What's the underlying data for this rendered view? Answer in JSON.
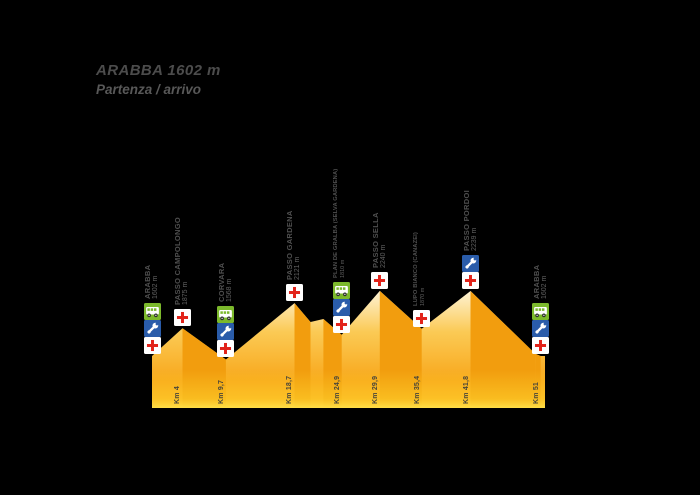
{
  "title": {
    "line1": "ARABBA 1602 m",
    "line2": "Partenza / arrivo"
  },
  "colors": {
    "background": "#000000",
    "face_light_top": "#FEF8E6",
    "face_light_mid": "#FBCA55",
    "face_light_bottom": "#F8A71B",
    "face_dark": "#F29D0E",
    "glow_yellow": "#FFD62E",
    "label_text": "#4F4F4F",
    "km_text": "#4A463A",
    "first_aid_red": "#E2231A",
    "service_blue": "#2A5CAA",
    "bus_green": "#7CB92C"
  },
  "chart_data": {
    "type": "area",
    "title": "ARABBA 1602 m — Partenza / arrivo",
    "xlabel": "Km",
    "ylabel": "m",
    "x_range_km": [
      0,
      51
    ],
    "y_range_m": [
      1402,
      2300
    ],
    "grid": false,
    "legend": "none",
    "profile_points": [
      {
        "km": 0,
        "m": 1602
      },
      {
        "km": 4,
        "m": 1875
      },
      {
        "km": 9.7,
        "m": 1568
      },
      {
        "km": 18.7,
        "m": 2121
      },
      {
        "km": 20.8,
        "m": 1935
      },
      {
        "km": 22.5,
        "m": 1965
      },
      {
        "km": 24.9,
        "m": 1810
      },
      {
        "km": 29.9,
        "m": 2240
      },
      {
        "km": 35.4,
        "m": 1870
      },
      {
        "km": 41.8,
        "m": 2239
      },
      {
        "km": 50.3,
        "m": 1625
      },
      {
        "km": 51,
        "m": 1602
      }
    ],
    "waypoints": [
      {
        "name": "ARABBA",
        "elevation_label": "1602 m",
        "km": 0,
        "style": "major",
        "services": [
          "bus-icon",
          "wrench-icon",
          "first-aid-icon"
        ]
      },
      {
        "name": "PASSO CAMPOLONGO",
        "elevation_label": "1875 m",
        "km": 4,
        "style": "major",
        "services": [
          "first-aid-icon"
        ]
      },
      {
        "name": "CORVARA",
        "elevation_label": "1568 m",
        "km": 9.7,
        "style": "major",
        "services": [
          "bus-icon",
          "wrench-icon",
          "first-aid-icon"
        ]
      },
      {
        "name": "PASSO GARDENA",
        "elevation_label": "2121 m",
        "km": 18.7,
        "style": "major",
        "services": [
          "first-aid-icon"
        ]
      },
      {
        "name": "PLAN DE GRALBA (SELVA GARDENA)",
        "elevation_label": "1810 m",
        "km": 24.9,
        "style": "minor",
        "services": [
          "bus-icon",
          "wrench-icon",
          "first-aid-icon"
        ]
      },
      {
        "name": "PASSO SELLA",
        "elevation_label": "2240 m",
        "km": 29.9,
        "style": "major",
        "services": [
          "first-aid-icon"
        ]
      },
      {
        "name": "LUPO BIANCO (CANAZEI)",
        "elevation_label": "1870 m",
        "km": 35.4,
        "style": "minor",
        "services": [
          "first-aid-icon"
        ]
      },
      {
        "name": "PASSO PORDOI",
        "elevation_label": "2239 m",
        "km": 41.8,
        "style": "major",
        "services": [
          "wrench-icon",
          "first-aid-icon"
        ]
      },
      {
        "name": "ARABBA",
        "elevation_label": "1602 m",
        "km": 51,
        "style": "major",
        "services": [
          "bus-icon",
          "wrench-icon",
          "first-aid-icon"
        ]
      }
    ],
    "km_ticks": [
      {
        "label": "Km 4",
        "km": 4
      },
      {
        "label": "Km 9,7",
        "km": 9.7
      },
      {
        "label": "Km 18,7",
        "km": 18.7
      },
      {
        "label": "Km 24,9",
        "km": 24.9
      },
      {
        "label": "Km 29,9",
        "km": 29.9
      },
      {
        "label": "Km 35,4",
        "km": 35.4
      },
      {
        "label": "Km 41,8",
        "km": 41.8
      },
      {
        "label": "Km 51",
        "km": 51
      }
    ]
  }
}
